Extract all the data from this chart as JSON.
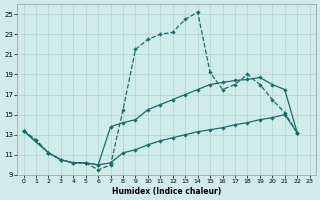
{
  "xlabel": "Humidex (Indice chaleur)",
  "bg_color": "#d0ecea",
  "grid_color": "#b0d4d0",
  "line_color": "#1a6b6b",
  "xlim": [
    -0.5,
    23.5
  ],
  "ylim": [
    9,
    26
  ],
  "xticks": [
    0,
    1,
    2,
    3,
    4,
    5,
    6,
    7,
    8,
    9,
    10,
    11,
    12,
    13,
    14,
    15,
    16,
    17,
    18,
    19,
    20,
    21,
    22,
    23
  ],
  "yticks": [
    9,
    11,
    13,
    15,
    17,
    19,
    21,
    23,
    25
  ],
  "s1x": [
    0,
    1,
    2,
    3,
    4,
    5,
    6,
    7,
    8,
    9,
    10,
    11,
    12,
    13,
    14,
    15,
    16,
    17,
    18,
    19,
    20,
    21,
    22
  ],
  "s1y": [
    13.4,
    12.5,
    11.2,
    10.5,
    10.2,
    10.2,
    9.5,
    10.0,
    15.5,
    21.5,
    22.5,
    23.0,
    23.2,
    24.5,
    25.2,
    19.2,
    17.5,
    18.0,
    19.0,
    18.0,
    16.5,
    15.2,
    13.2
  ],
  "s2x": [
    0,
    2,
    3,
    4,
    5,
    6,
    7,
    8,
    9,
    10,
    11,
    12,
    13,
    14,
    15,
    16,
    17,
    18,
    19,
    20,
    21,
    22
  ],
  "s2y": [
    13.4,
    11.2,
    10.5,
    10.2,
    10.2,
    10.0,
    13.8,
    14.2,
    14.5,
    15.5,
    16.0,
    16.5,
    17.0,
    17.5,
    18.0,
    18.2,
    18.4,
    18.5,
    18.7,
    18.0,
    17.5,
    13.2
  ],
  "s3x": [
    0,
    2,
    3,
    4,
    5,
    6,
    7,
    8,
    9,
    10,
    11,
    12,
    13,
    14,
    15,
    16,
    17,
    18,
    19,
    20,
    21,
    22
  ],
  "s3y": [
    13.4,
    11.2,
    10.5,
    10.2,
    10.2,
    10.0,
    10.2,
    11.2,
    11.5,
    12.0,
    12.4,
    12.7,
    13.0,
    13.3,
    13.5,
    13.7,
    14.0,
    14.2,
    14.5,
    14.7,
    15.0,
    13.2
  ]
}
